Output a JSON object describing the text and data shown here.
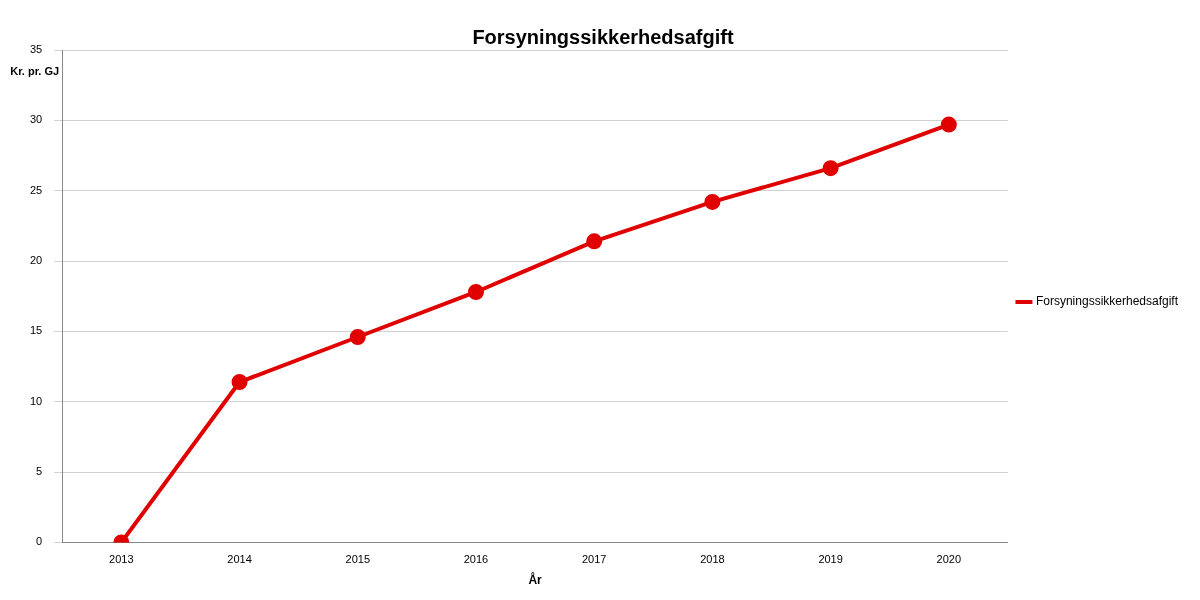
{
  "chart_data": {
    "type": "line",
    "title": "Forsyningssikkerhedsafgift",
    "xlabel": "År",
    "ylabel": "Kr. pr. GJ",
    "categories": [
      "2013",
      "2014",
      "2015",
      "2016",
      "2017",
      "2018",
      "2019",
      "2020"
    ],
    "series": [
      {
        "name": "Forsyningssikkerhedsafgift",
        "color": "#e00000",
        "values": [
          0,
          11.4,
          14.6,
          17.8,
          21.4,
          24.2,
          26.6,
          29.7
        ]
      }
    ],
    "ylim": [
      0,
      35
    ],
    "yticks": [
      0,
      5,
      10,
      15,
      20,
      25,
      30,
      35
    ],
    "grid": "y",
    "legend": "right",
    "marker": "circle",
    "line_style": "solid"
  }
}
